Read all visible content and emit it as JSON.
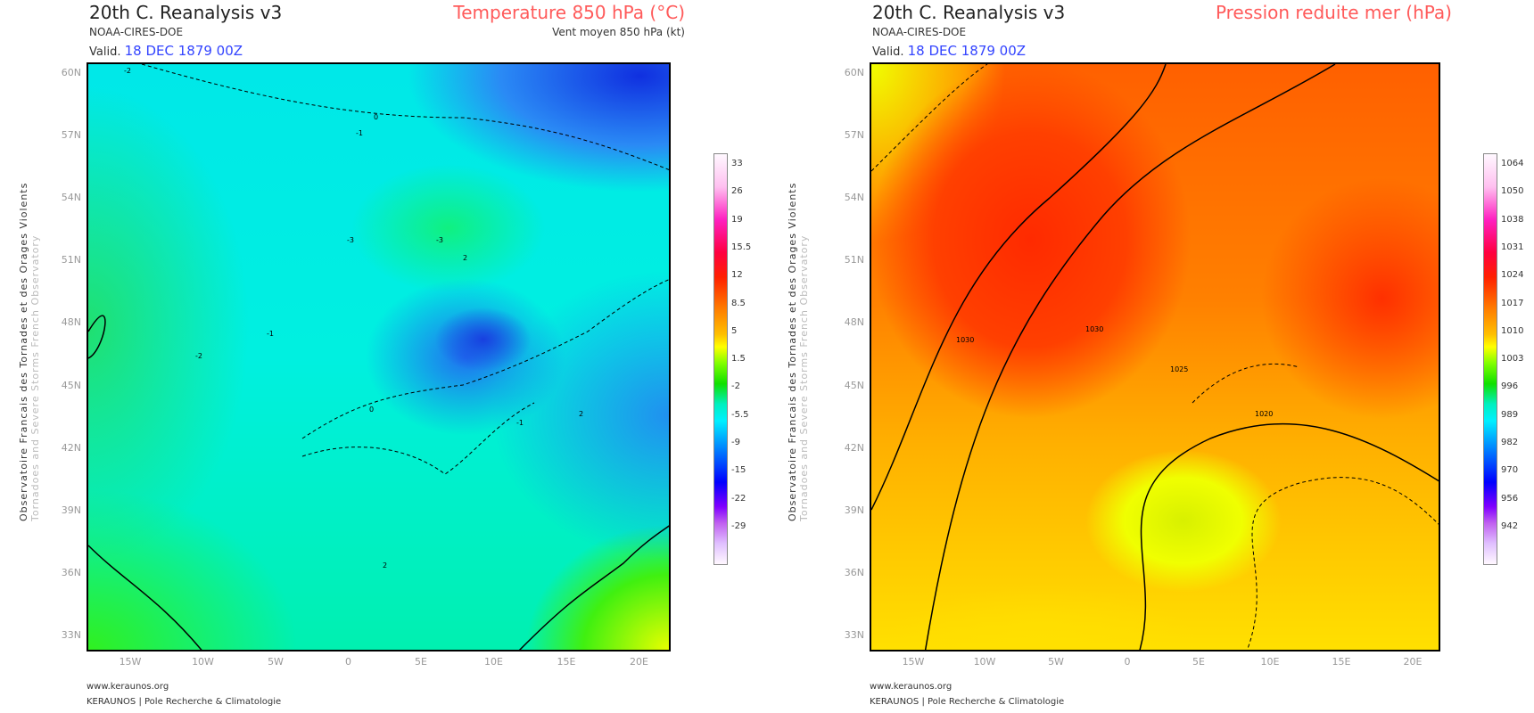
{
  "side_text": {
    "line1": "Observatoire Francais des Tornades et des Orages Violents",
    "line2": "Tornadoes and Severe Storms French Observatory"
  },
  "panels": [
    {
      "model": "20th C. Reanalysis v3",
      "source": "NOAA-CIRES-DOE",
      "valid_label": "Valid.",
      "valid_date": "18 DEC 1879 00Z",
      "field_title": "Temperature 850 hPa (°C)",
      "field_sub": "Vent moyen 850 hPa (kt)",
      "colorbar": [
        "33",
        "26",
        "19",
        "15.5",
        "12",
        "8.5",
        "5",
        "1.5",
        "-2",
        "-5.5",
        "-9",
        "-15",
        "-22",
        "-29"
      ],
      "contour_labels": [
        "-2",
        "-3",
        "0",
        "-1",
        "-3",
        "2",
        "-2",
        "-1",
        "0",
        "-1",
        "2",
        "2"
      ]
    },
    {
      "model": "20th C. Reanalysis v3",
      "source": "NOAA-CIRES-DOE",
      "valid_label": "Valid.",
      "valid_date": "18 DEC 1879 00Z",
      "field_title": "Pression reduite mer (hPa)",
      "field_sub": "",
      "colorbar": [
        "1064",
        "1050",
        "1038",
        "1031",
        "1024",
        "1017",
        "1010",
        "1003",
        "996",
        "989",
        "982",
        "970",
        "956",
        "942"
      ],
      "contour_labels": [
        "1030",
        "1030",
        "1025",
        "1020"
      ]
    }
  ],
  "lat_labels": [
    "60N",
    "57N",
    "54N",
    "51N",
    "48N",
    "45N",
    "42N",
    "39N",
    "36N",
    "33N"
  ],
  "lon_labels": [
    "15W",
    "10W",
    "5W",
    "0",
    "5E",
    "10E",
    "15E",
    "20E"
  ],
  "footer": {
    "url": "www.keraunos.org",
    "org": "KERAUNOS | Pole Recherche & Climatologie"
  },
  "colors": {
    "title_accent": "#ff5a5a",
    "date": "#3344ff"
  }
}
